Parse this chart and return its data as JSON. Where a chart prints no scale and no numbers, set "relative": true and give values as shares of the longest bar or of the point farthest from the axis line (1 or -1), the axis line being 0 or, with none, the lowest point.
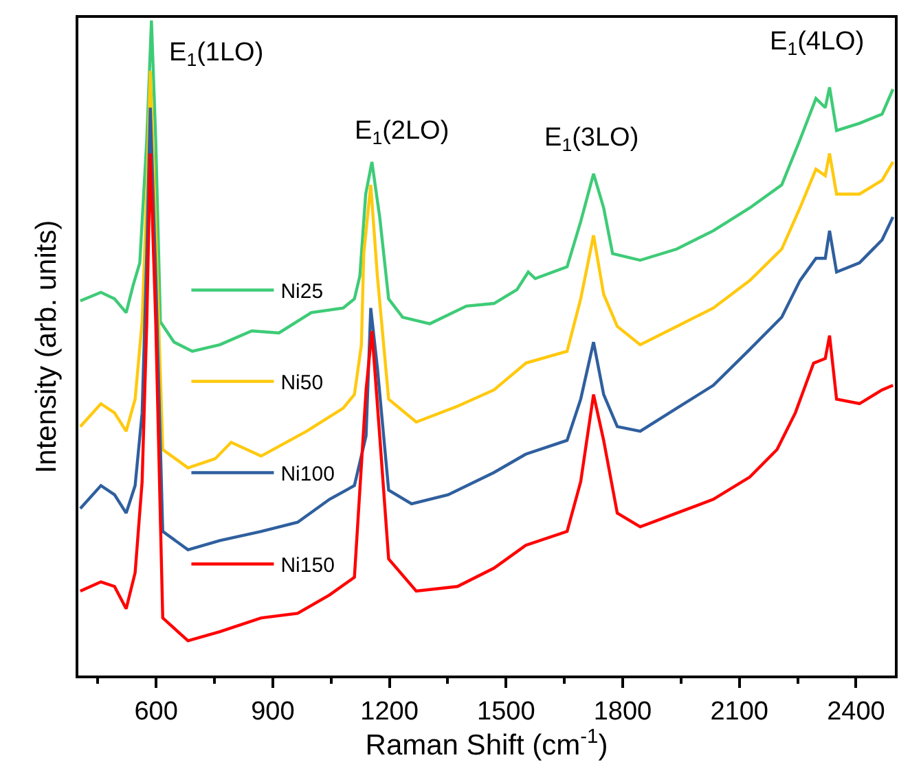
{
  "chart_data": {
    "type": "line",
    "xlabel": "Raman Shift (cm$^{-1}$)",
    "ylabel": "Intensity (arb. units)",
    "relative": true,
    "xlim": [
      400,
      2500
    ],
    "xticks": [
      600,
      900,
      1200,
      1500,
      1800,
      2100,
      2400
    ],
    "legend": "left",
    "marker": "none",
    "line_style": "solid",
    "annotations": [
      "E$_{1}$(1LO)",
      "E$_{1}$(2LO)",
      "E$_{1}$(3LO)",
      "E$_{1}$(4LO)"
    ],
    "series": [
      {
        "name": "Ni25",
        "color": "#3ecb77",
        "x": [
          405,
          458,
          493,
          523,
          541,
          558,
          576,
          588,
          599,
          611,
          646,
          693,
          764,
          846,
          916,
          999,
          1081,
          1110,
          1124,
          1139,
          1155,
          1175,
          1198,
          1234,
          1304,
          1398,
          1469,
          1528,
          1557,
          1575,
          1657,
          1692,
          1725,
          1751,
          1774,
          1845,
          1939,
          2033,
          2127,
          2209,
          2256,
          2297,
          2321,
          2332,
          2350,
          2409,
          2467,
          2495
        ],
        "values": [
          0.572,
          0.585,
          0.575,
          0.554,
          0.596,
          0.63,
          0.818,
          1.0,
          0.818,
          0.54,
          0.509,
          0.495,
          0.505,
          0.526,
          0.523,
          0.554,
          0.561,
          0.575,
          0.61,
          0.735,
          0.784,
          0.7,
          0.575,
          0.547,
          0.537,
          0.564,
          0.568,
          0.589,
          0.616,
          0.606,
          0.624,
          0.693,
          0.766,
          0.714,
          0.644,
          0.634,
          0.651,
          0.679,
          0.714,
          0.749,
          0.818,
          0.881,
          0.867,
          0.898,
          0.832,
          0.843,
          0.857,
          0.895
        ]
      },
      {
        "name": "Ni50",
        "color": "#ffc90e",
        "x": [
          405,
          458,
          493,
          523,
          546,
          564,
          576,
          585,
          599,
          617,
          682,
          752,
          793,
          870,
          987,
          1081,
          1110,
          1128,
          1134,
          1152,
          1169,
          1198,
          1269,
          1375,
          1469,
          1551,
          1657,
          1692,
          1725,
          1751,
          1786,
          1845,
          1939,
          2033,
          2127,
          2209,
          2256,
          2297,
          2321,
          2332,
          2350,
          2409,
          2467,
          2495
        ],
        "values": [
          0.38,
          0.415,
          0.401,
          0.373,
          0.422,
          0.54,
          0.735,
          0.923,
          0.679,
          0.345,
          0.317,
          0.331,
          0.356,
          0.335,
          0.373,
          0.408,
          0.429,
          0.505,
          0.644,
          0.749,
          0.61,
          0.422,
          0.387,
          0.411,
          0.436,
          0.477,
          0.495,
          0.575,
          0.672,
          0.582,
          0.533,
          0.505,
          0.533,
          0.561,
          0.603,
          0.651,
          0.714,
          0.773,
          0.763,
          0.797,
          0.735,
          0.735,
          0.756,
          0.784
        ]
      },
      {
        "name": "Ni100",
        "color": "#2f5f9e",
        "x": [
          405,
          458,
          493,
          523,
          546,
          564,
          576,
          585,
          599,
          617,
          682,
          764,
          870,
          964,
          1046,
          1110,
          1140,
          1152,
          1169,
          1198,
          1257,
          1351,
          1469,
          1551,
          1657,
          1692,
          1725,
          1751,
          1786,
          1845,
          1939,
          2033,
          2127,
          2209,
          2256,
          2297,
          2321,
          2332,
          2350,
          2409,
          2467,
          2495
        ],
        "values": [
          0.255,
          0.29,
          0.276,
          0.248,
          0.29,
          0.401,
          0.644,
          0.867,
          0.61,
          0.22,
          0.192,
          0.206,
          0.22,
          0.234,
          0.269,
          0.29,
          0.366,
          0.561,
          0.47,
          0.283,
          0.262,
          0.276,
          0.31,
          0.338,
          0.359,
          0.422,
          0.509,
          0.429,
          0.38,
          0.373,
          0.408,
          0.443,
          0.498,
          0.547,
          0.603,
          0.637,
          0.637,
          0.679,
          0.616,
          0.63,
          0.665,
          0.7
        ]
      },
      {
        "name": "Ni150",
        "color": "#ff0000",
        "x": [
          405,
          458,
          493,
          523,
          546,
          564,
          576,
          585,
          599,
          617,
          682,
          764,
          870,
          964,
          1046,
          1110,
          1140,
          1155,
          1175,
          1198,
          1269,
          1375,
          1469,
          1551,
          1657,
          1692,
          1725,
          1751,
          1786,
          1845,
          1939,
          2033,
          2127,
          2197,
          2244,
          2291,
          2321,
          2332,
          2350,
          2409,
          2467,
          2495
        ],
        "values": [
          0.129,
          0.143,
          0.136,
          0.102,
          0.157,
          0.296,
          0.54,
          0.797,
          0.54,
          0.088,
          0.053,
          0.067,
          0.088,
          0.095,
          0.123,
          0.15,
          0.436,
          0.526,
          0.366,
          0.178,
          0.129,
          0.136,
          0.164,
          0.199,
          0.22,
          0.296,
          0.429,
          0.359,
          0.248,
          0.227,
          0.248,
          0.269,
          0.303,
          0.345,
          0.401,
          0.477,
          0.484,
          0.519,
          0.422,
          0.415,
          0.436,
          0.443
        ]
      }
    ]
  }
}
